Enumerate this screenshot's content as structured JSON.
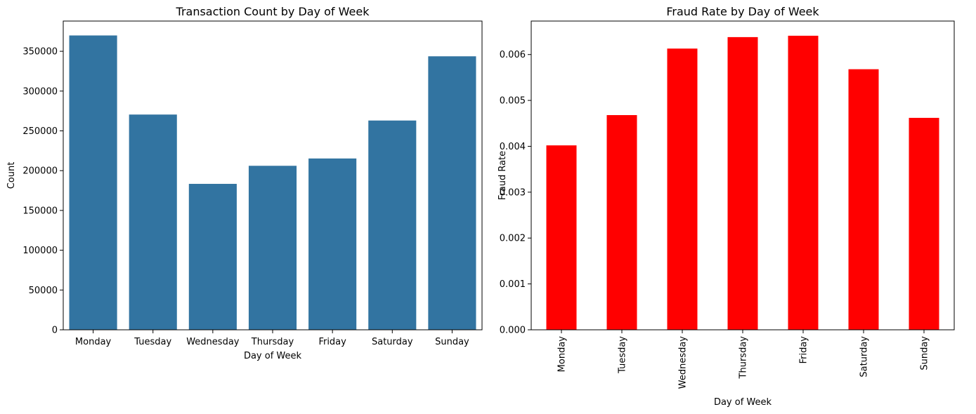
{
  "chart_data": [
    {
      "type": "bar",
      "title": "Transaction Count by Day of Week",
      "xlabel": "Day of Week",
      "ylabel": "Count",
      "categories": [
        "Monday",
        "Tuesday",
        "Wednesday",
        "Thursday",
        "Friday",
        "Saturday",
        "Sunday"
      ],
      "values": [
        369900,
        270500,
        183400,
        206100,
        215300,
        263000,
        343700
      ],
      "ylim": [
        0,
        388000
      ],
      "yticks": [
        0,
        50000,
        100000,
        150000,
        200000,
        250000,
        300000,
        350000
      ],
      "ytick_labels": [
        "0",
        "50000",
        "100000",
        "150000",
        "200000",
        "250000",
        "300000",
        "350000"
      ],
      "color": "#3274a1",
      "xtick_rotation": "horizontal",
      "grid": false
    },
    {
      "type": "bar",
      "title": "Fraud Rate by Day of Week",
      "xlabel": "Day of Week",
      "ylabel": "Fraud Rate",
      "categories": [
        "Monday",
        "Tuesday",
        "Wednesday",
        "Thursday",
        "Friday",
        "Saturday",
        "Sunday"
      ],
      "values": [
        0.00402,
        0.00468,
        0.00613,
        0.00638,
        0.00641,
        0.00568,
        0.00462
      ],
      "ylim": [
        0,
        0.00673
      ],
      "yticks": [
        0,
        0.001,
        0.002,
        0.003,
        0.004,
        0.005,
        0.006
      ],
      "ytick_labels": [
        "0.000",
        "0.001",
        "0.002",
        "0.003",
        "0.004",
        "0.005",
        "0.006"
      ],
      "color": "#ff0000",
      "xtick_rotation": "vertical",
      "grid": false
    }
  ]
}
